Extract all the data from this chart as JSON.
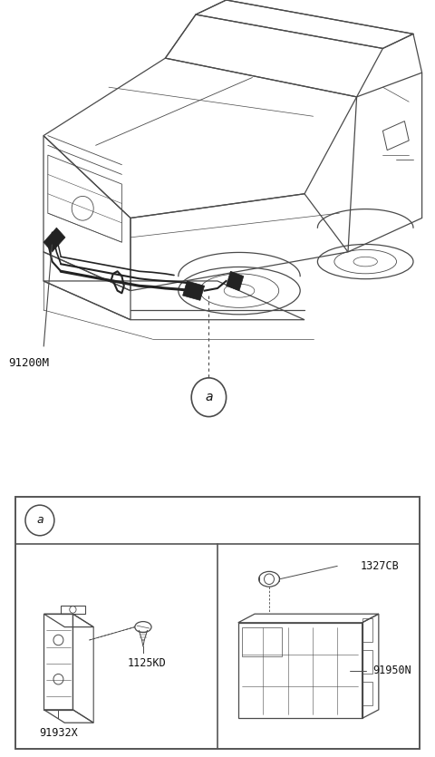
{
  "bg_color": "#ffffff",
  "line_color": "#4a4a4a",
  "dark_line": "#222222",
  "label_color": "#111111",
  "part_labels": {
    "main_harness": "91200M",
    "callout_a": "a",
    "bracket": "91932X",
    "screw": "1125KD",
    "nut": "1327CB",
    "junction_block": "91950N"
  }
}
